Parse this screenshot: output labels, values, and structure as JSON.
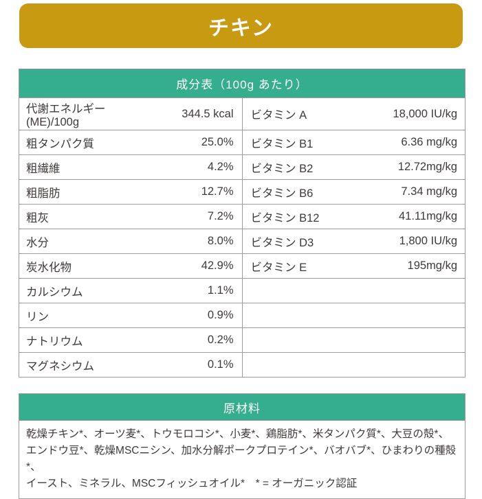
{
  "colors": {
    "banner_gold": "#C79A11",
    "header_teal": "#35AE8D",
    "border_gray": "#9B9B9C",
    "text_dark": "#3E3A39"
  },
  "banner": {
    "title": "チキン"
  },
  "composition": {
    "header": "成分表（100g あたり）",
    "rows": [
      {
        "l": "代謝エネルギー",
        "l2": "(ME)/100g",
        "lv": "344.5 kcal",
        "r": "ビタミン A",
        "rv": "18,000 IU/kg"
      },
      {
        "l": "粗タンパク質",
        "lv": "25.0%",
        "r": "ビタミン B1",
        "rv": "6.36 mg/kg"
      },
      {
        "l": "粗繊維",
        "lv": "4.2%",
        "r": "ビタミン B2",
        "rv": "12.72mg/kg"
      },
      {
        "l": "粗脂肪",
        "lv": "12.7%",
        "r": "ビタミン B6",
        "rv": "7.34 mg/kg"
      },
      {
        "l": "粗灰",
        "lv": "7.2%",
        "r": "ビタミン B12",
        "rv": "41.11mg/kg"
      },
      {
        "l": "水分",
        "lv": "8.0%",
        "r": "ビタミン D3",
        "rv": "1,800 IU/kg"
      },
      {
        "l": "炭水化物",
        "lv": "42.9%",
        "r": "ビタミン E",
        "rv": "195mg/kg"
      },
      {
        "l": "カルシウム",
        "lv": "1.1%",
        "r": "",
        "rv": ""
      },
      {
        "l": "リン",
        "lv": "0.9%",
        "r": "",
        "rv": ""
      },
      {
        "l": "ナトリウム",
        "lv": "0.2%",
        "r": "",
        "rv": ""
      },
      {
        "l": "マグネシウム",
        "lv": "0.1%",
        "r": "",
        "rv": ""
      }
    ]
  },
  "ingredients": {
    "header": "原材料",
    "lines": [
      "乾燥チキン*、オーツ麦*、トウモロコシ*、小麦*、鶏脂肪*、米タンパク質*、大豆の殻*、",
      "エンドウ豆*、乾燥MSCニシン、加水分解ポークプロテイン*、バオバブ*、ひまわりの種殻*、",
      "イースト、ミネラル、MSCフィッシュオイル*　* = オーガニック認証"
    ]
  }
}
